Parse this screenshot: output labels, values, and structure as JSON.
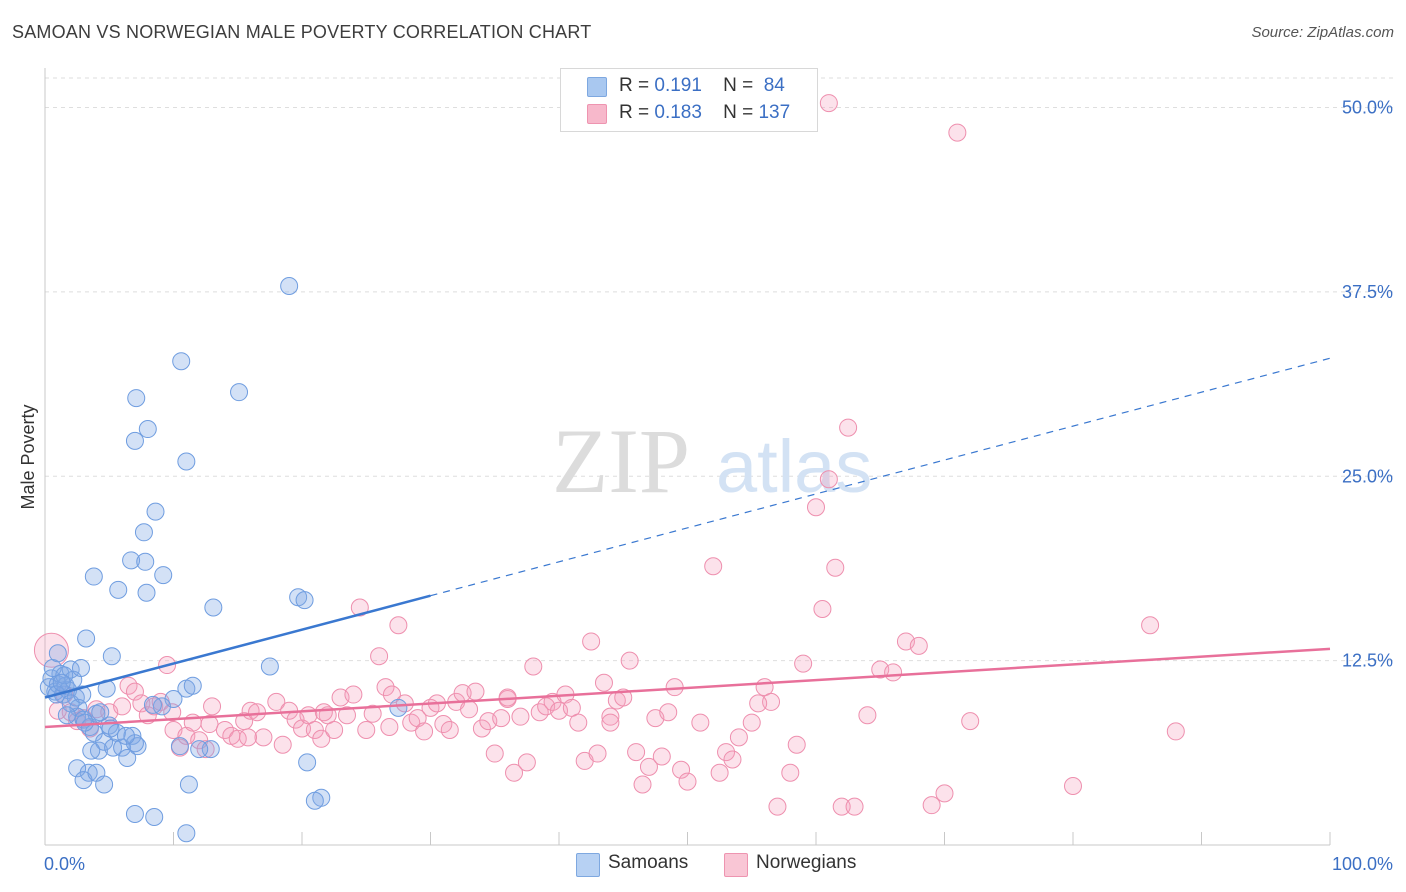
{
  "title": "SAMOAN VS NORWEGIAN MALE POVERTY CORRELATION CHART",
  "source": "Source: ZipAtlas.com",
  "watermark": {
    "zip": "ZIP",
    "atlas": "atlas"
  },
  "legend": {
    "rows": [
      {
        "r_label": "R =",
        "r_value": "0.191",
        "n_label": "N =",
        "n_value": "84",
        "color": "#a9c8f0"
      },
      {
        "r_label": "R =",
        "r_value": "0.183",
        "n_label": "N =",
        "n_value": "137",
        "color": "#f7b8cb"
      }
    ]
  },
  "bottom_legend": {
    "samoans": "Samoans",
    "norwegians": "Norwegians"
  },
  "colors": {
    "samoan_fill": "rgba(130,170,230,0.35)",
    "samoan_stroke": "#6f9de0",
    "samoan_line": "#3a78d0",
    "norwegian_fill": "rgba(245,160,190,0.30)",
    "norwegian_stroke": "#ee8fae",
    "norwegian_line": "#e8709a",
    "grid": "#dedede",
    "axis_text": "#3b6fc4"
  },
  "chart_data": {
    "type": "scatter",
    "title": "SAMOAN VS NORWEGIAN MALE POVERTY CORRELATION CHART",
    "xlabel": "",
    "ylabel": "Male Poverty",
    "xlim": [
      0,
      100
    ],
    "ylim": [
      0,
      52
    ],
    "x_tick_labels": [
      "0.0%",
      "100.0%"
    ],
    "y_ticks": [
      12.5,
      25.0,
      37.5,
      50.0
    ],
    "y_tick_labels": [
      "12.5%",
      "25.0%",
      "37.5%",
      "50.0%"
    ],
    "grid": true,
    "legend_position": "top-center",
    "series": [
      {
        "name": "Samoans",
        "r": 0.191,
        "n": 84,
        "trend": {
          "x0": 0,
          "y0": 10.0,
          "x1": 100,
          "y1": 33.0,
          "solid_until_x": 30
        },
        "points": [
          [
            0.3,
            10.7
          ],
          [
            0.5,
            11.3
          ],
          [
            0.8,
            10.4
          ],
          [
            1.0,
            10.9
          ],
          [
            1.2,
            11.6
          ],
          [
            1.4,
            10.2
          ],
          [
            1.6,
            10.8
          ],
          [
            0.6,
            12.0
          ],
          [
            1.8,
            10.5
          ],
          [
            2.0,
            11.9
          ],
          [
            2.2,
            11.2
          ],
          [
            2.4,
            10.0
          ],
          [
            2.6,
            9.3
          ],
          [
            2.8,
            12.0
          ],
          [
            1.0,
            13.0
          ],
          [
            2.5,
            8.7
          ],
          [
            3.0,
            8.5
          ],
          [
            3.5,
            8.0
          ],
          [
            4.0,
            8.9
          ],
          [
            3.2,
            14.0
          ],
          [
            3.8,
            7.6
          ],
          [
            4.2,
            6.4
          ],
          [
            4.6,
            7.0
          ],
          [
            5.0,
            8.1
          ],
          [
            5.3,
            6.6
          ],
          [
            5.6,
            7.6
          ],
          [
            6.0,
            6.6
          ],
          [
            6.4,
            5.9
          ],
          [
            6.8,
            7.4
          ],
          [
            7.2,
            6.7
          ],
          [
            4.8,
            10.6
          ],
          [
            5.2,
            12.8
          ],
          [
            3.4,
            4.9
          ],
          [
            2.5,
            5.2
          ],
          [
            3.0,
            4.4
          ],
          [
            4.0,
            4.9
          ],
          [
            4.6,
            4.1
          ],
          [
            7.0,
            2.1
          ],
          [
            8.5,
            1.9
          ],
          [
            11.0,
            0.8
          ],
          [
            3.8,
            18.2
          ],
          [
            5.7,
            17.3
          ],
          [
            6.7,
            19.3
          ],
          [
            7.8,
            19.2
          ],
          [
            7.9,
            17.1
          ],
          [
            9.2,
            18.3
          ],
          [
            8.0,
            28.2
          ],
          [
            7.1,
            30.3
          ],
          [
            7.0,
            27.4
          ],
          [
            8.6,
            22.6
          ],
          [
            7.7,
            21.2
          ],
          [
            10.6,
            32.8
          ],
          [
            11.0,
            26.0
          ],
          [
            15.1,
            30.7
          ],
          [
            19.0,
            37.9
          ],
          [
            13.1,
            16.1
          ],
          [
            19.7,
            16.8
          ],
          [
            20.2,
            16.6
          ],
          [
            17.5,
            12.1
          ],
          [
            11.0,
            10.6
          ],
          [
            10.0,
            9.9
          ],
          [
            9.1,
            9.4
          ],
          [
            11.5,
            10.8
          ],
          [
            12.9,
            6.5
          ],
          [
            10.5,
            6.7
          ],
          [
            12.0,
            6.5
          ],
          [
            11.2,
            4.1
          ],
          [
            7.0,
            6.9
          ],
          [
            8.4,
            9.5
          ],
          [
            3.6,
            6.4
          ],
          [
            20.4,
            5.6
          ],
          [
            21.5,
            3.2
          ],
          [
            21.0,
            3.0
          ],
          [
            27.5,
            9.3
          ],
          [
            2.0,
            9.6
          ],
          [
            1.5,
            11.5
          ],
          [
            0.9,
            10.2
          ],
          [
            1.3,
            11.0
          ],
          [
            2.9,
            10.2
          ],
          [
            4.3,
            9.0
          ],
          [
            5.1,
            7.9
          ],
          [
            6.3,
            7.4
          ],
          [
            1.7,
            8.8
          ],
          [
            3.1,
            8.3
          ]
        ]
      },
      {
        "name": "Norwegians",
        "r": 0.183,
        "n": 137,
        "trend": {
          "x0": 0,
          "y0": 8.0,
          "x1": 100,
          "y1": 13.3
        },
        "points": [
          [
            0.5,
            13.2
          ],
          [
            1.5,
            10.2
          ],
          [
            2.0,
            9.0
          ],
          [
            3.0,
            8.6
          ],
          [
            4.0,
            9.2
          ],
          [
            5.0,
            9.0
          ],
          [
            6.0,
            9.4
          ],
          [
            6.5,
            10.8
          ],
          [
            7.0,
            10.4
          ],
          [
            7.5,
            9.6
          ],
          [
            8.0,
            8.8
          ],
          [
            8.5,
            9.4
          ],
          [
            9.0,
            9.7
          ],
          [
            9.5,
            12.2
          ],
          [
            10.0,
            7.8
          ],
          [
            10.5,
            6.6
          ],
          [
            11.0,
            7.4
          ],
          [
            11.5,
            8.3
          ],
          [
            12.0,
            7.1
          ],
          [
            12.5,
            6.5
          ],
          [
            13.0,
            9.4
          ],
          [
            14.0,
            7.8
          ],
          [
            14.5,
            7.4
          ],
          [
            15.0,
            7.2
          ],
          [
            15.5,
            8.4
          ],
          [
            16.0,
            9.1
          ],
          [
            16.5,
            9.0
          ],
          [
            17.0,
            7.3
          ],
          [
            18.0,
            9.7
          ],
          [
            18.5,
            6.8
          ],
          [
            19.0,
            9.1
          ],
          [
            19.5,
            8.5
          ],
          [
            20.0,
            7.9
          ],
          [
            20.5,
            8.8
          ],
          [
            21.0,
            7.8
          ],
          [
            21.5,
            7.2
          ],
          [
            22.0,
            8.8
          ],
          [
            22.5,
            7.8
          ],
          [
            23.0,
            10.0
          ],
          [
            23.5,
            8.8
          ],
          [
            24.0,
            10.2
          ],
          [
            24.5,
            16.1
          ],
          [
            25.0,
            7.8
          ],
          [
            25.5,
            8.9
          ],
          [
            26.0,
            12.8
          ],
          [
            26.5,
            10.7
          ],
          [
            27.0,
            10.2
          ],
          [
            27.5,
            14.9
          ],
          [
            28.0,
            9.6
          ],
          [
            28.5,
            8.3
          ],
          [
            29.0,
            8.6
          ],
          [
            29.5,
            7.7
          ],
          [
            30.0,
            9.3
          ],
          [
            30.5,
            9.6
          ],
          [
            31.0,
            8.2
          ],
          [
            31.5,
            7.8
          ],
          [
            32.0,
            9.7
          ],
          [
            32.5,
            10.3
          ],
          [
            33.0,
            9.2
          ],
          [
            33.5,
            10.4
          ],
          [
            34.0,
            7.9
          ],
          [
            34.5,
            8.4
          ],
          [
            35.0,
            6.2
          ],
          [
            35.5,
            8.6
          ],
          [
            36.0,
            9.9
          ],
          [
            36.5,
            4.9
          ],
          [
            37.0,
            8.7
          ],
          [
            37.5,
            5.6
          ],
          [
            38.0,
            12.1
          ],
          [
            38.5,
            9.0
          ],
          [
            39.0,
            9.4
          ],
          [
            39.5,
            9.7
          ],
          [
            40.0,
            9.1
          ],
          [
            40.5,
            10.2
          ],
          [
            41.0,
            9.3
          ],
          [
            41.5,
            8.3
          ],
          [
            42.0,
            5.7
          ],
          [
            42.5,
            13.8
          ],
          [
            43.0,
            6.2
          ],
          [
            43.5,
            11.0
          ],
          [
            44.0,
            8.7
          ],
          [
            44.5,
            9.8
          ],
          [
            45.0,
            10.0
          ],
          [
            45.5,
            12.5
          ],
          [
            46.0,
            6.3
          ],
          [
            46.5,
            4.1
          ],
          [
            47.0,
            5.3
          ],
          [
            47.5,
            8.6
          ],
          [
            48.0,
            6.0
          ],
          [
            48.5,
            9.0
          ],
          [
            49.0,
            10.7
          ],
          [
            49.5,
            5.1
          ],
          [
            50.0,
            4.3
          ],
          [
            51.0,
            8.3
          ],
          [
            52.0,
            18.9
          ],
          [
            52.5,
            4.9
          ],
          [
            53.0,
            6.3
          ],
          [
            53.5,
            5.8
          ],
          [
            54.0,
            7.3
          ],
          [
            55.0,
            8.3
          ],
          [
            56.0,
            10.7
          ],
          [
            56.5,
            9.7
          ],
          [
            57.0,
            2.6
          ],
          [
            58.0,
            4.9
          ],
          [
            58.5,
            6.8
          ],
          [
            59.0,
            12.3
          ],
          [
            60.0,
            22.9
          ],
          [
            60.5,
            16.0
          ],
          [
            61.0,
            24.8
          ],
          [
            61.5,
            18.8
          ],
          [
            62.0,
            2.6
          ],
          [
            62.5,
            28.3
          ],
          [
            63.0,
            2.6
          ],
          [
            64.0,
            8.8
          ],
          [
            65.0,
            11.9
          ],
          [
            66.0,
            11.7
          ],
          [
            67.0,
            13.8
          ],
          [
            68.0,
            13.5
          ],
          [
            69.0,
            2.7
          ],
          [
            70.0,
            3.5
          ],
          [
            72.0,
            8.4
          ],
          [
            80.0,
            4.0
          ],
          [
            86.0,
            14.9
          ],
          [
            88.0,
            7.7
          ],
          [
            61.0,
            50.3
          ],
          [
            71.0,
            48.3
          ],
          [
            55.5,
            9.6
          ],
          [
            44.0,
            8.3
          ],
          [
            36.0,
            10.0
          ],
          [
            21.7,
            9.0
          ],
          [
            12.8,
            8.2
          ],
          [
            9.9,
            9.0
          ],
          [
            3.5,
            7.9
          ],
          [
            1.0,
            9.1
          ],
          [
            2.5,
            8.4
          ],
          [
            15.8,
            7.3
          ],
          [
            26.8,
            8.0
          ]
        ]
      }
    ]
  }
}
